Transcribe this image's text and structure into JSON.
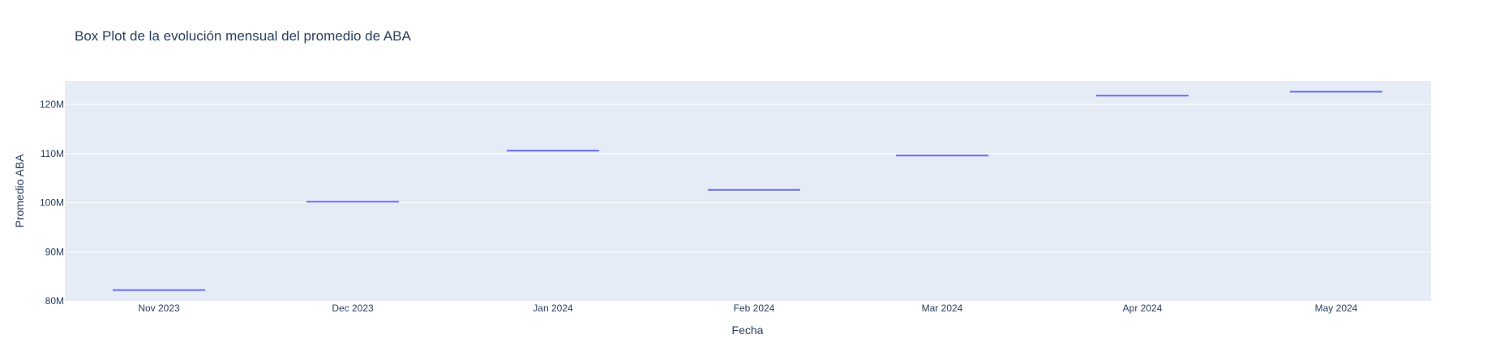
{
  "chart_data": {
    "type": "box",
    "title": "Box Plot de la evolución mensual del promedio de ABA",
    "xlabel": "Fecha",
    "ylabel": "Promedio ABA",
    "categories": [
      "Nov 2023",
      "Dec 2023",
      "Jan 2024",
      "Feb 2024",
      "Mar 2024",
      "Apr 2024",
      "May 2024"
    ],
    "values": [
      82.2,
      100.2,
      110.6,
      102.6,
      109.6,
      121.8,
      122.6
    ],
    "value_unit_suffix": "M",
    "ylim": [
      80,
      124.8
    ],
    "y_ticks": [
      80,
      90,
      100,
      110,
      120
    ],
    "y_tick_labels": [
      "80M",
      "90M",
      "100M",
      "110M",
      "120M"
    ],
    "grid": true,
    "colors": {
      "plot_background": "#e5ecf6",
      "grid": "#ffffff",
      "series": "#636efa",
      "text": "#2a3f5f"
    }
  }
}
